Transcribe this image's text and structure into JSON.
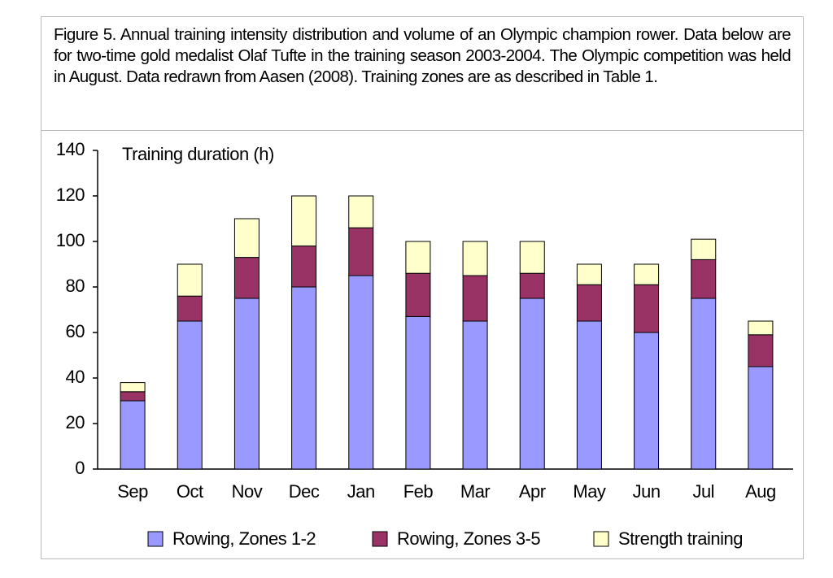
{
  "chart_data": {
    "type": "bar",
    "stacked": true,
    "caption": "Figure 5. Annual training intensity distribution and volume of an Olympic champion rower. Data below are for two-time gold medalist Olaf Tufte in the training season 2003-2004. The Olympic competition was held in August. Data redrawn from Aasen (2008). Training zones are as described in Table 1.",
    "y_label": "Training duration (h)",
    "categories": [
      "Sep",
      "Oct",
      "Nov",
      "Dec",
      "Jan",
      "Feb",
      "Mar",
      "Apr",
      "May",
      "Jun",
      "Jul",
      "Aug"
    ],
    "series": [
      {
        "name": "Rowing, Zones 1-2",
        "color": "#9999ff",
        "values": [
          30,
          65,
          75,
          80,
          85,
          67,
          65,
          75,
          65,
          60,
          75,
          45
        ]
      },
      {
        "name": "Rowing, Zones 3-5",
        "color": "#993366",
        "values": [
          4,
          11,
          18,
          18,
          21,
          19,
          20,
          11,
          16,
          21,
          17,
          14
        ]
      },
      {
        "name": "Strength training",
        "color": "#ffffcc",
        "values": [
          4,
          14,
          17,
          22,
          14,
          14,
          15,
          14,
          9,
          9,
          9,
          6
        ]
      }
    ],
    "ylim": [
      0,
      140
    ],
    "yticks": [
      0,
      20,
      40,
      60,
      80,
      100,
      120,
      140
    ],
    "grid": false
  }
}
